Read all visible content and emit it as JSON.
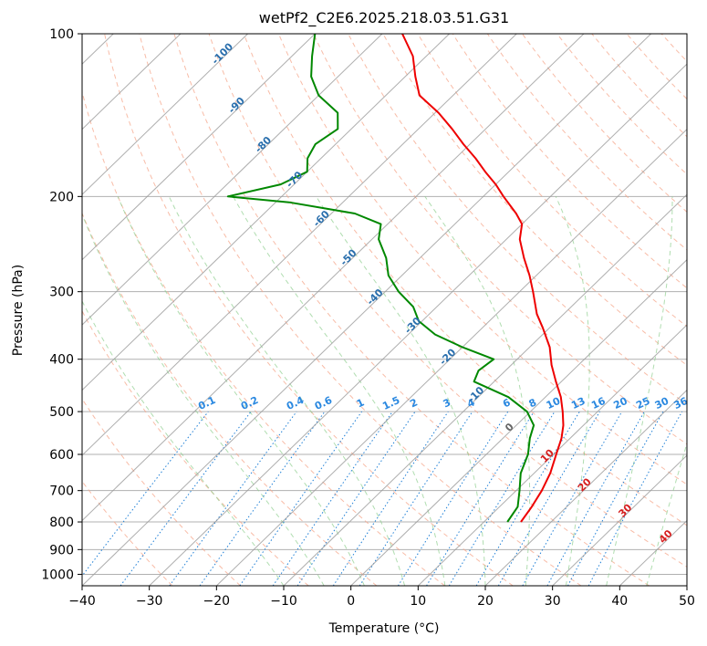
{
  "chart_data": {
    "type": "line",
    "subtype": "skew-T log-P diagram",
    "title": "wetPf2_C2E6.2025.218.03.51.G31",
    "xlabel": "Temperature (°C)",
    "ylabel": "Pressure (hPa)",
    "xlim": [
      -40,
      50
    ],
    "ylim": [
      1050,
      100
    ],
    "y_scale": "log",
    "grid": true,
    "x_ticks": [
      -40,
      -30,
      -20,
      -10,
      0,
      10,
      20,
      30,
      40,
      50
    ],
    "y_ticks": [
      1000,
      900,
      800,
      700,
      600,
      500,
      400,
      300,
      200,
      100
    ],
    "isotherm_labels": [
      "-100",
      "-90",
      "-80",
      "-70",
      "-60",
      "-50",
      "-40",
      "-30",
      "-20",
      "-10",
      "0",
      "10",
      "20",
      "30",
      "40"
    ],
    "mixing_ratio_labels": [
      "0.1",
      "0.2",
      "0.4",
      "0.6",
      "1",
      "1.5",
      "2",
      "3",
      "4",
      "6",
      "8",
      "10",
      "13",
      "16",
      "20",
      "25",
      "30",
      "36"
    ],
    "series": [
      {
        "color": "#ee0000",
        "pressure": [
          800,
          750,
          700,
          650,
          600,
          560,
          530,
          500,
          470,
          440,
          410,
          380,
          350,
          330,
          300,
          280,
          260,
          240,
          225,
          215,
          200,
          190,
          180,
          170,
          160,
          150,
          140,
          130,
          120,
          110,
          100
        ],
        "temperature": [
          15.5,
          14.8,
          13.8,
          12.4,
          10.4,
          8.7,
          7.0,
          4.8,
          2.3,
          -0.8,
          -4.0,
          -7.0,
          -11.0,
          -14.0,
          -18.0,
          -21.0,
          -24.5,
          -28.0,
          -30.0,
          -32.5,
          -37.0,
          -40.0,
          -43.5,
          -47.0,
          -51.0,
          -55.0,
          -59.5,
          -65.0,
          -68.5,
          -72.0,
          -77.0
        ]
      },
      {
        "color": "#008800",
        "pressure": [
          800,
          750,
          700,
          650,
          600,
          560,
          530,
          500,
          470,
          440,
          420,
          400,
          380,
          360,
          340,
          320,
          300,
          280,
          260,
          240,
          225,
          215,
          205,
          200,
          190,
          180,
          170,
          160,
          150,
          140,
          130,
          120,
          110,
          100
        ],
        "temperature": [
          13.5,
          12.7,
          10.5,
          8.0,
          6.2,
          4.0,
          2.6,
          -0.5,
          -5.5,
          -13.0,
          -14.0,
          -13.5,
          -20.0,
          -26.0,
          -30.5,
          -33.5,
          -38.0,
          -42.0,
          -45.0,
          -49.0,
          -51.0,
          -56.5,
          -68.0,
          -78.0,
          -72.0,
          -70.0,
          -72.0,
          -73.0,
          -72.0,
          -74.5,
          -80.0,
          -84.0,
          -87.0,
          -90.0
        ]
      }
    ]
  }
}
